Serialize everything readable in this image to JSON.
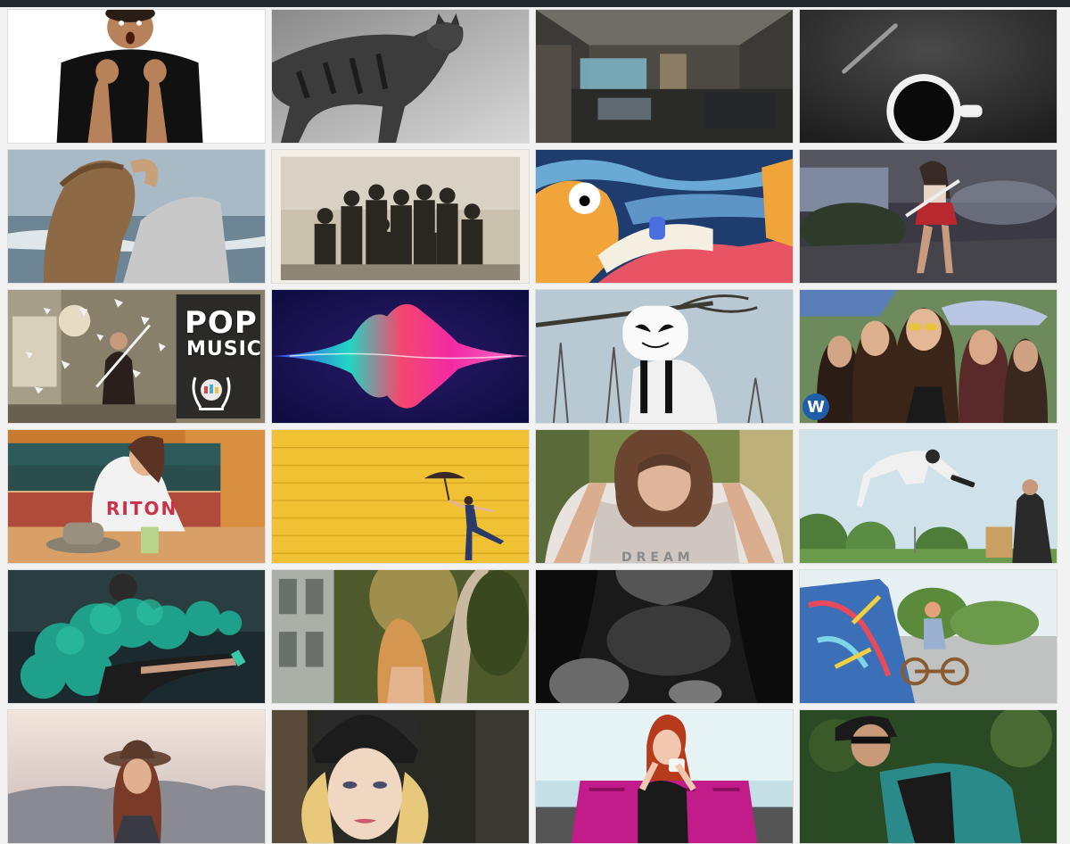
{
  "header": {
    "bar_color": "#23282d"
  },
  "gallery": {
    "tiles": [
      {
        "name": "surprised-man"
      },
      {
        "name": "walking-cat"
      },
      {
        "name": "control-room"
      },
      {
        "name": "coffee-and-pen"
      },
      {
        "name": "woman-by-sea"
      },
      {
        "name": "vintage-group-photo"
      },
      {
        "name": "cartoon-scene"
      },
      {
        "name": "woman-with-bat"
      },
      {
        "name": "pop-music-violinist",
        "overlay": {
          "line1": "POP",
          "line2": "MUSIC"
        }
      },
      {
        "name": "sound-wave"
      },
      {
        "name": "masked-dj"
      },
      {
        "name": "women-with-sunglasses",
        "logo": "W"
      },
      {
        "name": "woman-in-cafe",
        "overlay": {
          "text": "RITON"
        }
      },
      {
        "name": "yellow-wall-umbrella"
      },
      {
        "name": "woman-holding-head",
        "overlay": {
          "text": "DREAM"
        }
      },
      {
        "name": "skater-jump"
      },
      {
        "name": "green-smoke"
      },
      {
        "name": "woman-in-trees"
      },
      {
        "name": "dark-portrait"
      },
      {
        "name": "kid-on-bike-ramp"
      },
      {
        "name": "woman-with-hat"
      },
      {
        "name": "mannequin-head"
      },
      {
        "name": "woman-on-sofa"
      },
      {
        "name": "cyclist"
      }
    ]
  }
}
